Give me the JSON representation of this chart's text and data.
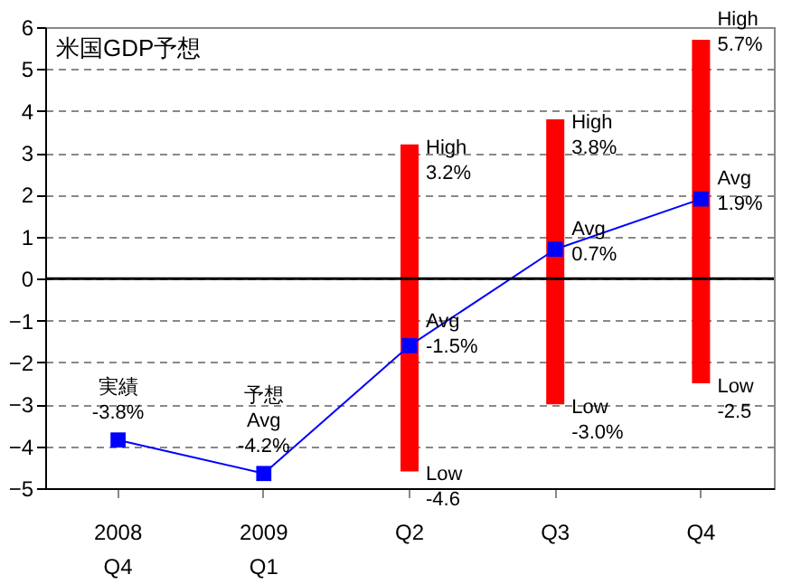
{
  "chart_data": {
    "type": "bar",
    "title": "米国GDP予想",
    "categories": [
      "2008\nQ4",
      "2009\nQ1",
      "Q2",
      "Q3",
      "Q4"
    ],
    "series": [
      {
        "color": "#ff0000",
        "base": [
          null,
          null,
          -4.6,
          -3.0,
          -2.5
        ],
        "values": [
          null,
          null,
          7.8,
          6.8,
          8.2
        ]
      },
      {
        "type": "line",
        "color": "#0000ff",
        "values": [
          -3.85,
          -4.65,
          -1.6,
          0.7,
          1.9
        ]
      }
    ],
    "ylim": [
      -5,
      6
    ],
    "yticks": [
      -5,
      -4,
      -3,
      -2,
      -1,
      0,
      1,
      2,
      3,
      4,
      5,
      6
    ],
    "grid": "y",
    "marker": "square",
    "line_style": "solid",
    "ref_lines": [
      {
        "axis": "y",
        "value": 0,
        "color": "#000000"
      }
    ],
    "annotations": [
      {
        "text": "実績\n-3.8%",
        "x": "2008\nQ4",
        "y": -3.85
      },
      {
        "text": "予想\nAvg\n-4.2%",
        "x": "2009\nQ1",
        "y": -4.65
      },
      {
        "text": "High\n3.2%",
        "x": "Q2",
        "y": 3.2
      },
      {
        "text": "Avg\n-1.5%",
        "x": "Q2",
        "y": -1.5
      },
      {
        "text": "Low\n-4.6",
        "x": "Q2",
        "y": -4.6
      },
      {
        "text": "High\n3.8%",
        "x": "Q3",
        "y": 3.8
      },
      {
        "text": "Avg\n0.7%",
        "x": "Q3",
        "y": 0.7
      },
      {
        "text": "Low\n-3.0%",
        "x": "Q3",
        "y": -3.0
      },
      {
        "text": "High\n5.7%",
        "x": "Q4",
        "y": 5.7
      },
      {
        "text": "Avg\n1.9%",
        "x": "Q4",
        "y": 1.9
      },
      {
        "text": "Low\n-2.5",
        "x": "Q4",
        "y": -2.5
      }
    ]
  }
}
